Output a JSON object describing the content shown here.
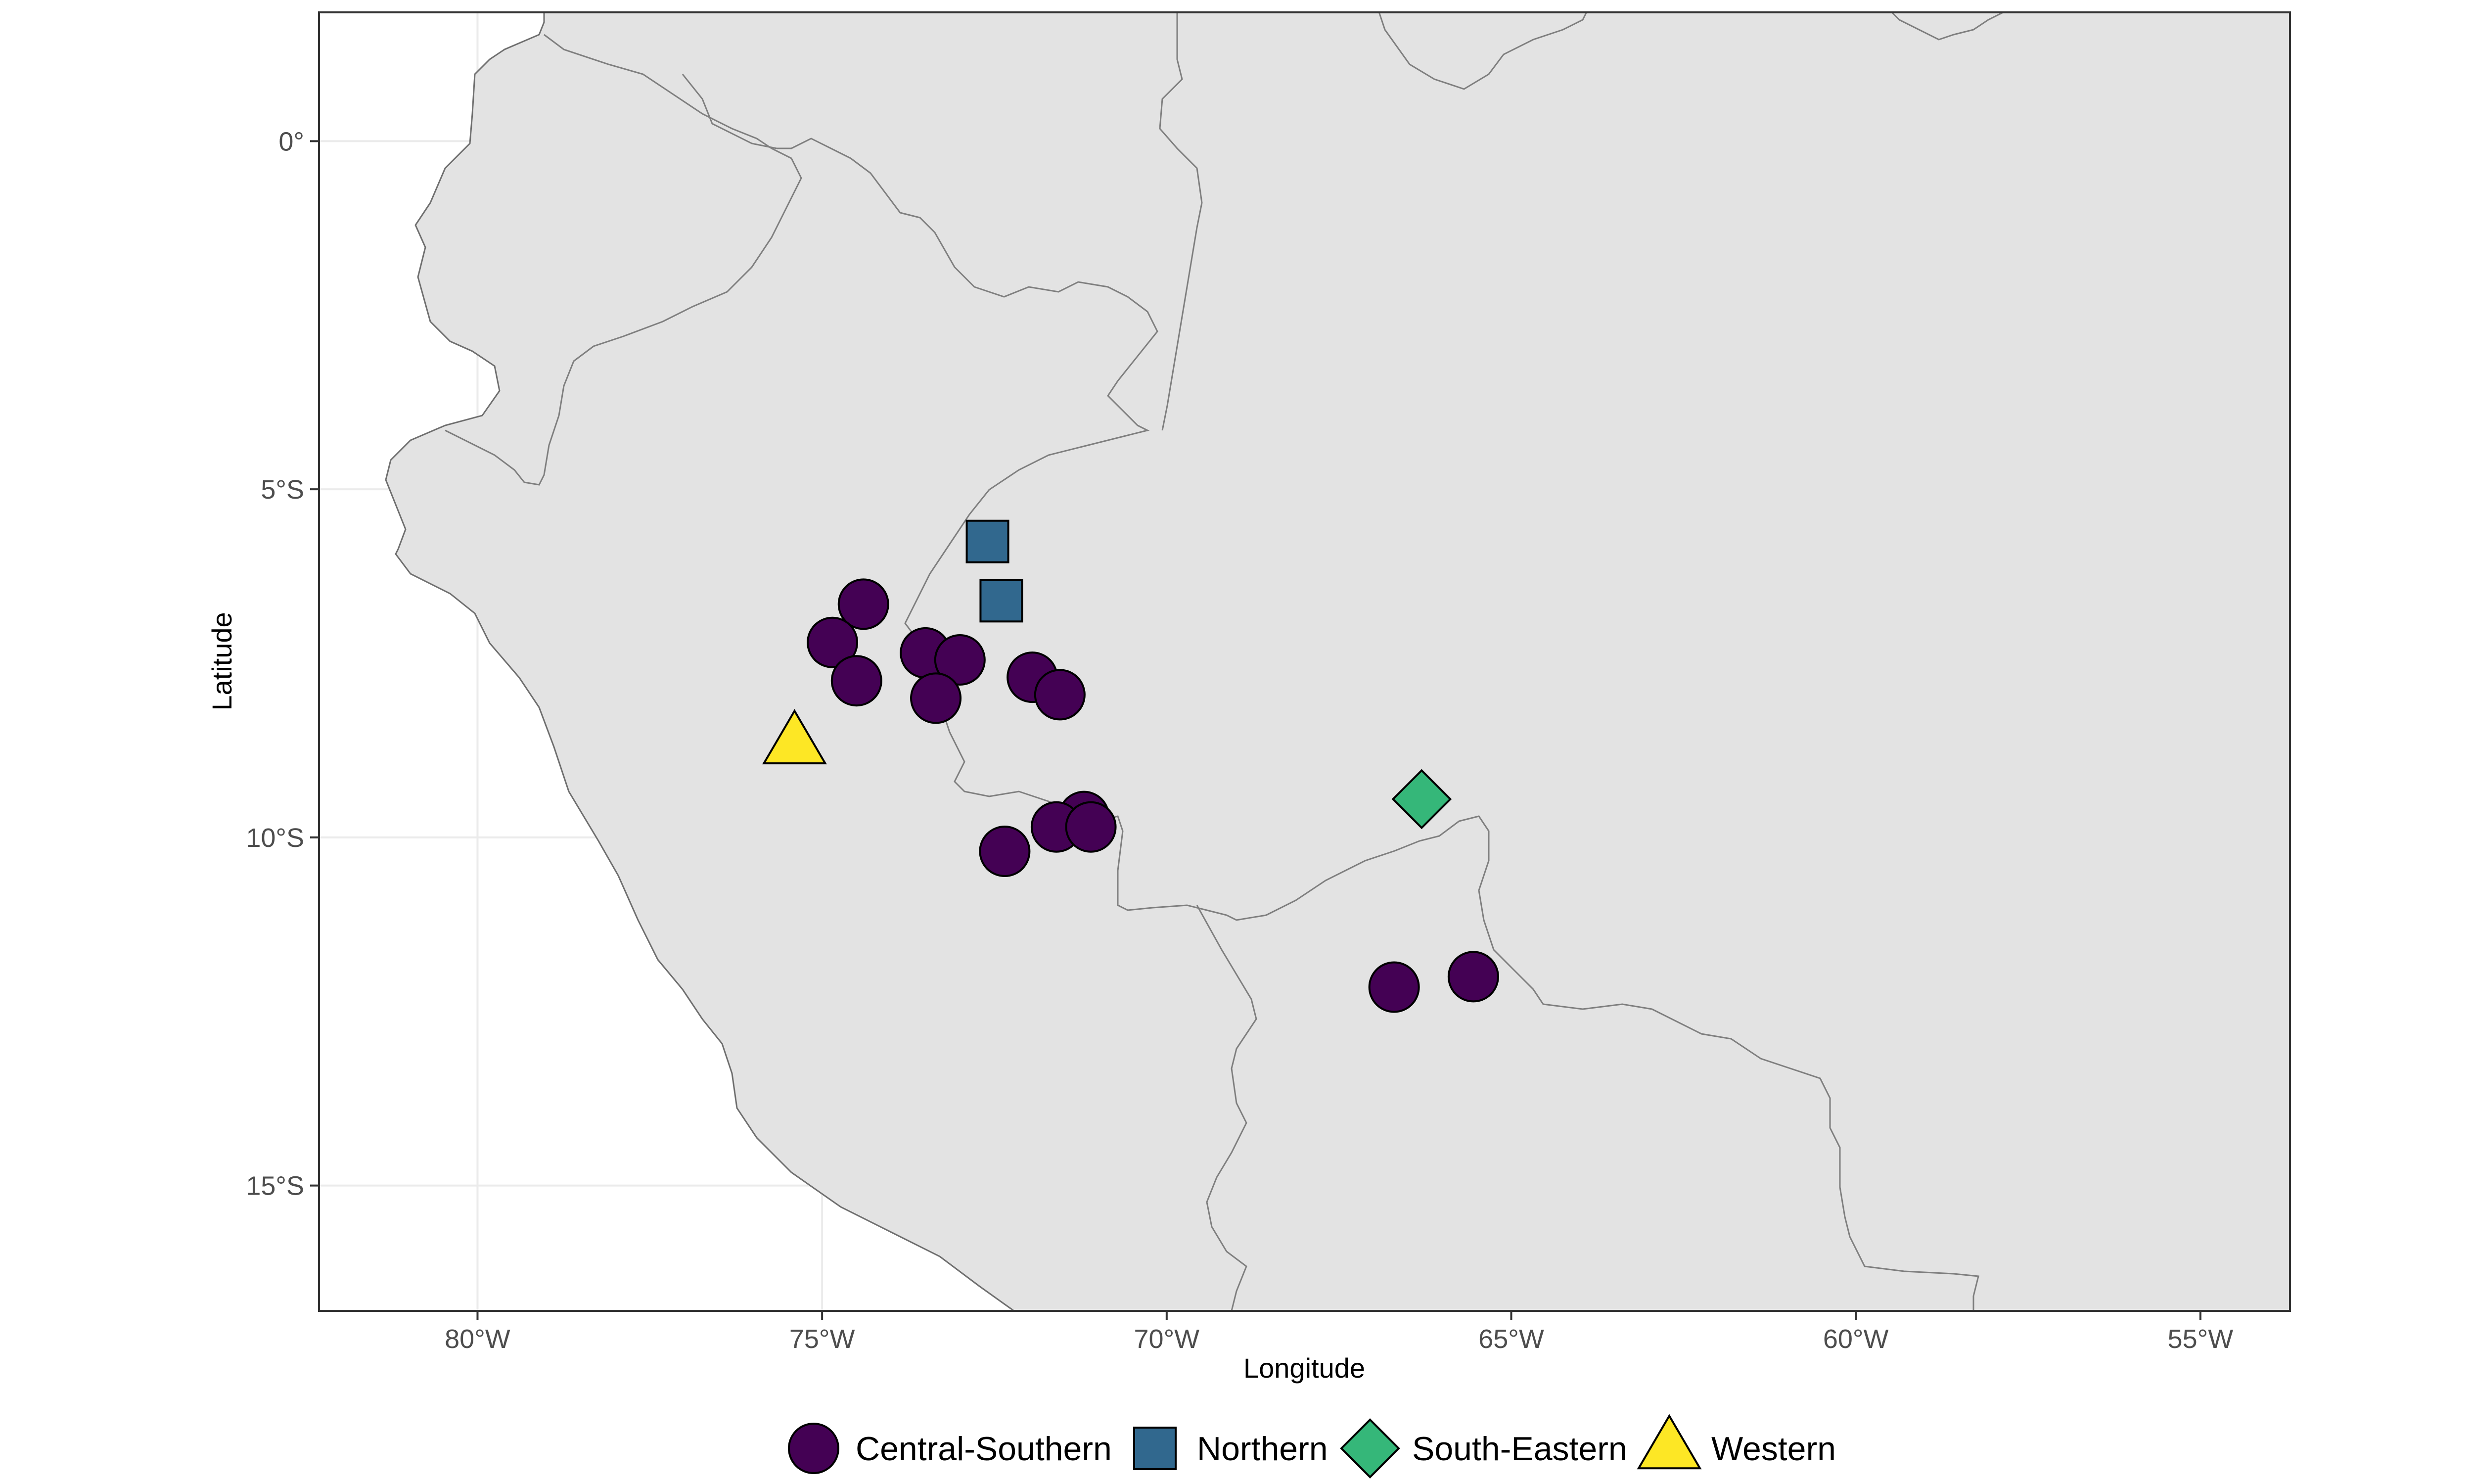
{
  "chart_data": {
    "type": "scatter",
    "xlabel": "Longitude",
    "ylabel": "Latitude",
    "xlim": [
      -82.3,
      -53.7
    ],
    "ylim": [
      -16.8,
      1.85
    ],
    "x_ticks": [
      {
        "value": -80,
        "label": "80°W"
      },
      {
        "value": -75,
        "label": "75°W"
      },
      {
        "value": -70,
        "label": "70°W"
      },
      {
        "value": -65,
        "label": "65°W"
      },
      {
        "value": -60,
        "label": "60°W"
      },
      {
        "value": -55,
        "label": "55°W"
      }
    ],
    "y_ticks": [
      {
        "value": 0,
        "label": "0°"
      },
      {
        "value": -5,
        "label": "5°S"
      },
      {
        "value": -10,
        "label": "10°S"
      },
      {
        "value": -15,
        "label": "15°S"
      }
    ],
    "grid": true,
    "legend_position": "bottom",
    "series": [
      {
        "name": "Central-Southern",
        "shape": "circle",
        "color": "#440154",
        "points": [
          {
            "x": -74.4,
            "y": -6.65
          },
          {
            "x": -74.85,
            "y": -7.2
          },
          {
            "x": -74.5,
            "y": -7.75
          },
          {
            "x": -73.5,
            "y": -7.35
          },
          {
            "x": -73.0,
            "y": -7.45
          },
          {
            "x": -73.35,
            "y": -8.0
          },
          {
            "x": -71.95,
            "y": -7.7
          },
          {
            "x": -71.55,
            "y": -7.95
          },
          {
            "x": -71.2,
            "y": -9.7
          },
          {
            "x": -71.6,
            "y": -9.85
          },
          {
            "x": -71.1,
            "y": -9.85
          },
          {
            "x": -72.35,
            "y": -10.2
          },
          {
            "x": -66.7,
            "y": -12.15
          },
          {
            "x": -65.55,
            "y": -12.0
          }
        ]
      },
      {
        "name": "Northern",
        "shape": "square",
        "color": "#31688E",
        "points": [
          {
            "x": -72.6,
            "y": -5.75
          },
          {
            "x": -72.4,
            "y": -6.6
          }
        ]
      },
      {
        "name": "South-Eastern",
        "shape": "diamond",
        "color": "#35B779",
        "points": [
          {
            "x": -66.3,
            "y": -9.45
          }
        ]
      },
      {
        "name": "Western",
        "shape": "triangle",
        "color": "#FDE725",
        "points": [
          {
            "x": -75.4,
            "y": -8.65
          }
        ]
      }
    ]
  },
  "colors": {
    "land": "#e3e3e3",
    "border": "#6f6f6f",
    "ocean": "#ffffff"
  }
}
